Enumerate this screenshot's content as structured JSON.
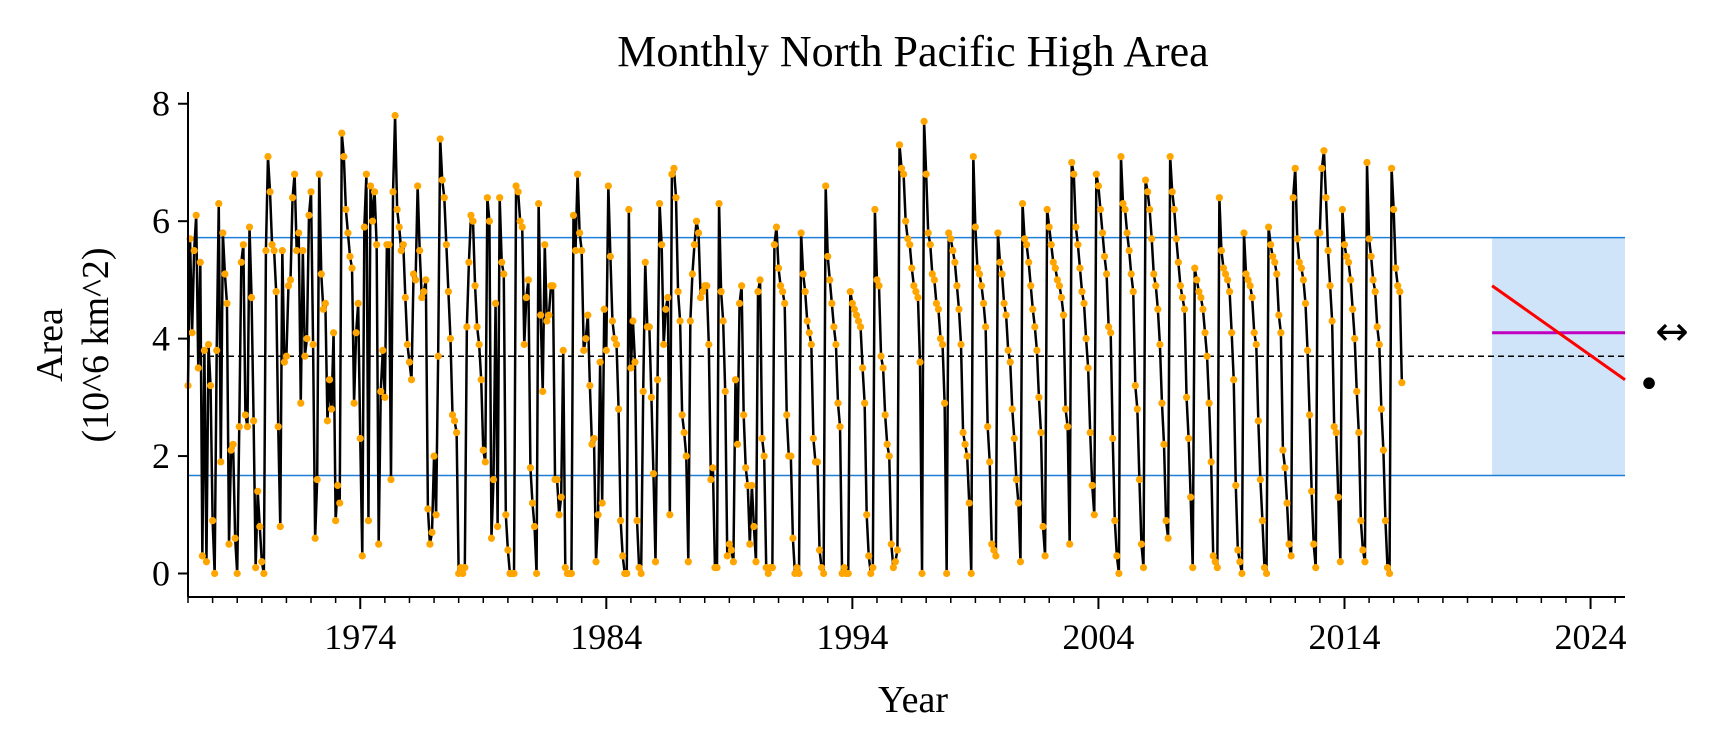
{
  "chart_data": {
    "type": "line",
    "title": "Monthly North Pacific High Area",
    "xlabel": "Year",
    "ylabel": [
      "Area",
      "(10^6 km^2)"
    ],
    "xlim": [
      1967.0,
      2025.4
    ],
    "ylim": [
      -0.4,
      8.2
    ],
    "x_ticks": [
      1974,
      1984,
      1994,
      2004,
      2014,
      2024
    ],
    "y_ticks": [
      0,
      2,
      4,
      6,
      8
    ],
    "grid": false,
    "colors": {
      "line": "#000000",
      "points": "#FFA500",
      "band_lines": "#1E7FD8",
      "band_fill": "#CFE4F8",
      "mean_line": "#000000",
      "trend": "#FF0000",
      "recent_mean": "#C000C0"
    },
    "reference_lines": {
      "mean": 3.7,
      "upper": 5.72,
      "lower": 1.67
    },
    "recent_window": {
      "x_start": 2020.0,
      "x_end": 2025.4,
      "band_low": 1.67,
      "band_high": 5.72,
      "mean": 4.1,
      "trend_start": 4.9,
      "trend_end": 3.3
    },
    "last_value": 3.25,
    "side_markers": [
      "↔",
      "•"
    ],
    "series": [
      {
        "start_year": 1967.0,
        "step": 0.08333,
        "values": [
          3.2,
          5.7,
          4.1,
          5.5,
          6.1,
          3.5,
          5.3,
          0.3,
          3.8,
          0.2,
          3.9,
          3.2,
          0.9,
          0.0,
          3.8,
          6.3,
          1.9,
          5.8,
          5.1,
          4.6,
          0.5,
          2.1,
          2.2,
          0.6,
          0.0,
          2.5,
          5.3,
          5.6,
          2.7,
          2.5,
          5.9,
          4.7,
          2.6,
          0.1,
          1.4,
          0.8,
          0.2,
          0.0,
          5.5,
          7.1,
          6.5,
          5.6,
          5.5,
          4.8,
          2.5,
          0.8,
          5.5,
          3.6,
          3.7,
          4.9,
          5.0,
          6.4,
          6.8,
          5.5,
          5.8,
          2.9,
          5.5,
          3.7,
          4.0,
          6.1,
          6.5,
          3.9,
          0.6,
          1.6,
          6.8,
          5.1,
          4.5,
          4.6,
          2.6,
          3.3,
          2.8,
          4.1,
          0.9,
          1.5,
          1.2,
          7.5,
          7.1,
          6.2,
          5.8,
          5.4,
          5.2,
          2.9,
          4.1,
          4.6,
          2.3,
          0.3,
          5.9,
          6.8,
          0.9,
          6.6,
          6.0,
          6.5,
          5.6,
          0.5,
          3.1,
          3.8,
          3.0,
          5.6,
          5.6,
          1.6,
          6.5,
          7.8,
          6.2,
          5.9,
          5.5,
          5.6,
          4.7,
          3.9,
          3.6,
          3.3,
          5.1,
          5.0,
          6.6,
          5.5,
          4.7,
          4.8,
          5.0,
          1.1,
          0.5,
          0.7,
          2.0,
          1.0,
          3.7,
          7.4,
          6.7,
          6.4,
          5.6,
          4.8,
          4.0,
          2.7,
          2.6,
          2.4,
          0.0,
          0.1,
          0.0,
          0.1,
          4.2,
          5.3,
          6.1,
          6.0,
          4.9,
          4.2,
          3.9,
          3.3,
          2.1,
          1.9,
          6.4,
          6.0,
          0.6,
          1.6,
          4.6,
          0.8,
          6.4,
          5.3,
          5.1,
          1.0,
          0.4,
          0.0,
          0.0,
          0.0,
          6.6,
          6.5,
          6.0,
          5.9,
          3.9,
          4.7,
          5.0,
          1.8,
          1.2,
          0.8,
          0.0,
          6.3,
          4.4,
          3.1,
          5.6,
          4.3,
          4.4,
          4.9,
          4.9,
          1.6,
          1.6,
          1.0,
          1.3,
          3.8,
          0.1,
          0.0,
          0.0,
          0.0,
          6.1,
          5.5,
          6.8,
          5.8,
          5.5,
          3.8,
          4.0,
          4.4,
          3.2,
          2.2,
          2.3,
          0.2,
          1.0,
          3.6,
          1.2,
          4.5,
          3.8,
          6.6,
          5.4,
          4.3,
          4.0,
          3.9,
          2.8,
          0.9,
          0.3,
          0.0,
          0.0,
          6.2,
          3.5,
          4.3,
          3.6,
          0.9,
          0.1,
          0.0,
          3.1,
          5.3,
          4.2,
          4.2,
          3.0,
          1.7,
          0.2,
          3.3,
          6.3,
          5.6,
          3.9,
          4.5,
          4.7,
          1.0,
          6.8,
          6.9,
          6.4,
          4.8,
          4.3,
          2.7,
          2.4,
          2.0,
          0.2,
          4.3,
          5.1,
          5.6,
          6.0,
          5.8,
          4.7,
          4.8,
          4.9,
          4.9,
          3.9,
          1.6,
          1.8,
          0.1,
          0.1,
          6.3,
          4.8,
          4.3,
          3.1,
          0.3,
          0.5,
          0.4,
          0.2,
          3.3,
          2.2,
          4.6,
          4.9,
          2.7,
          1.8,
          1.5,
          0.5,
          1.5,
          0.8,
          0.2,
          4.8,
          5.0,
          2.3,
          2.0,
          0.1,
          0.0,
          0.1,
          0.1,
          5.6,
          5.9,
          5.2,
          4.9,
          4.8,
          4.6,
          2.7,
          2.0,
          2.0,
          0.6,
          0.0,
          0.1,
          0.0,
          5.8,
          5.1,
          4.8,
          4.3,
          4.1,
          3.9,
          2.3,
          1.9,
          1.9,
          0.4,
          0.1,
          0.0,
          6.6,
          5.4,
          5.0,
          4.6,
          4.2,
          3.9,
          2.9,
          2.5,
          0.0,
          0.1,
          0.0,
          0.0,
          4.8,
          4.6,
          4.5,
          4.4,
          4.3,
          4.2,
          3.5,
          2.9,
          1.0,
          0.3,
          0.0,
          0.1,
          6.2,
          5.0,
          4.9,
          3.7,
          3.5,
          2.7,
          2.2,
          2.0,
          0.5,
          0.1,
          0.2,
          0.4,
          7.3,
          6.9,
          6.8,
          6.0,
          5.7,
          5.6,
          5.2,
          4.9,
          4.8,
          4.7,
          3.6,
          0.0,
          7.7,
          6.8,
          5.8,
          5.6,
          5.1,
          5.0,
          4.6,
          4.5,
          4.0,
          3.9,
          2.9,
          0.0,
          5.8,
          5.7,
          5.5,
          5.3,
          4.9,
          4.5,
          3.9,
          2.4,
          2.2,
          2.0,
          1.2,
          0.0,
          7.1,
          5.9,
          5.2,
          5.1,
          4.9,
          4.6,
          4.2,
          2.5,
          1.9,
          0.5,
          0.4,
          0.3,
          5.8,
          5.3,
          5.1,
          4.6,
          4.4,
          3.8,
          3.6,
          2.8,
          2.3,
          1.6,
          1.2,
          0.2,
          6.3,
          5.7,
          5.6,
          5.3,
          4.9,
          4.5,
          4.2,
          3.8,
          3.0,
          2.4,
          0.8,
          0.3,
          6.2,
          5.9,
          5.6,
          5.3,
          5.2,
          5.0,
          4.9,
          4.7,
          4.4,
          2.8,
          2.5,
          0.5,
          7.0,
          6.8,
          5.9,
          5.6,
          5.2,
          4.8,
          4.6,
          4.0,
          3.5,
          2.4,
          1.5,
          1.0,
          6.8,
          6.6,
          6.2,
          5.8,
          5.4,
          5.1,
          4.2,
          4.1,
          2.3,
          0.9,
          0.3,
          0.0,
          7.1,
          6.3,
          6.2,
          5.8,
          5.5,
          5.1,
          4.8,
          3.2,
          2.8,
          1.6,
          0.5,
          0.1,
          6.7,
          6.5,
          6.2,
          5.7,
          5.1,
          4.9,
          4.5,
          3.9,
          2.9,
          2.2,
          0.9,
          0.6,
          7.1,
          6.5,
          6.2,
          5.7,
          5.3,
          4.9,
          4.7,
          4.5,
          3.0,
          2.3,
          1.3,
          0.1,
          5.2,
          5.0,
          4.8,
          4.7,
          4.5,
          4.1,
          3.7,
          2.9,
          1.9,
          0.3,
          0.2,
          0.1,
          6.4,
          5.5,
          5.2,
          5.1,
          5.0,
          4.8,
          4.1,
          3.3,
          1.5,
          0.4,
          0.2,
          0.0,
          5.8,
          5.1,
          5.0,
          4.9,
          4.7,
          4.1,
          3.9,
          2.6,
          1.6,
          0.9,
          0.1,
          0.0,
          5.9,
          5.6,
          5.4,
          5.3,
          5.1,
          4.4,
          4.1,
          2.1,
          1.8,
          1.2,
          0.5,
          0.3,
          6.4,
          6.9,
          5.7,
          5.3,
          5.2,
          5.0,
          4.6,
          3.8,
          2.7,
          1.4,
          0.5,
          0.1,
          5.8,
          5.8,
          6.9,
          7.2,
          6.4,
          5.5,
          4.9,
          4.3,
          2.5,
          2.4,
          1.3,
          0.2,
          6.2,
          5.6,
          5.4,
          5.3,
          5.0,
          4.5,
          4.0,
          3.1,
          2.4,
          0.9,
          0.4,
          0.2,
          7.0,
          5.7,
          5.4,
          5.0,
          4.8,
          4.2,
          3.9,
          2.8,
          2.1,
          0.9,
          0.1,
          0.0,
          6.9,
          6.2,
          5.2,
          4.9,
          4.8,
          3.25
        ]
      }
    ]
  }
}
